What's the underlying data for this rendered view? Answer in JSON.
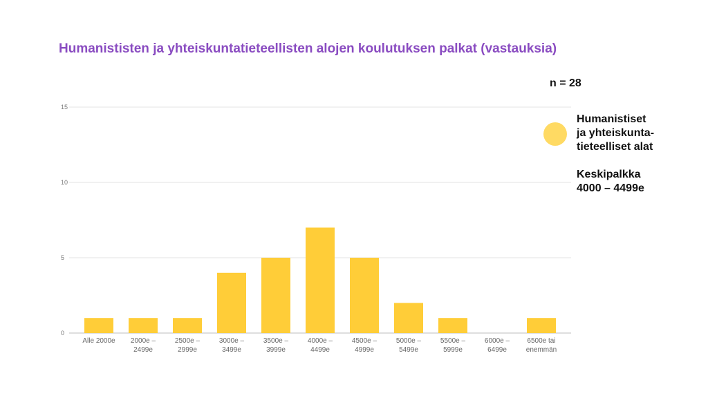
{
  "title": "Humanististen ja yhteiskuntatieteellisten alojen koulutuksen palkat (vastauksia)",
  "n_label": "n = 28",
  "legend": {
    "lines": [
      "Humanistiset",
      "ja yhteiskunta-",
      "tieteelliset alat"
    ],
    "color": "#ffda63"
  },
  "average": {
    "lines": [
      "Keskipalkka",
      "4000 – 4499e"
    ]
  },
  "chart_data": {
    "type": "bar",
    "categories": [
      [
        "Alle 2000e"
      ],
      [
        "2000e –",
        "2499e"
      ],
      [
        "2500e –",
        "2999e"
      ],
      [
        "3000e –",
        "3499e"
      ],
      [
        "3500e –",
        "3999e"
      ],
      [
        "4000e –",
        "4499e"
      ],
      [
        "4500e –",
        "4999e"
      ],
      [
        "5000e –",
        "5499e"
      ],
      [
        "5500e –",
        "5999e"
      ],
      [
        "6000e –",
        "6499e"
      ],
      [
        "6500e tai",
        "enemmän"
      ]
    ],
    "values": [
      1,
      1,
      1,
      4,
      5,
      7,
      5,
      2,
      1,
      0,
      1
    ],
    "yticks": [
      0,
      5,
      10,
      15
    ],
    "ylim": [
      0,
      15
    ],
    "bar_color": "#ffcd38",
    "grid": true
  }
}
